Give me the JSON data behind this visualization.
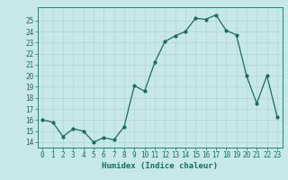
{
  "x": [
    0,
    1,
    2,
    3,
    4,
    5,
    6,
    7,
    8,
    9,
    10,
    11,
    12,
    13,
    14,
    15,
    16,
    17,
    18,
    19,
    20,
    21,
    22,
    23
  ],
  "y": [
    16,
    15.8,
    14.5,
    15.2,
    15.0,
    14.0,
    14.4,
    14.2,
    15.4,
    19.1,
    18.6,
    21.2,
    23.1,
    23.6,
    24.0,
    25.2,
    25.1,
    25.5,
    24.1,
    23.7,
    20.0,
    17.5,
    20.0,
    16.3
  ],
  "line_color": "#1a6b5a",
  "bg_color": "#c8e8e8",
  "grid_color": "#b0d4d4",
  "xlabel": "Humidex (Indice chaleur)",
  "ylim": [
    13.5,
    26.2
  ],
  "xlim": [
    -0.5,
    23.5
  ],
  "yticks": [
    14,
    15,
    16,
    17,
    18,
    19,
    20,
    21,
    22,
    23,
    24,
    25
  ],
  "xticks": [
    0,
    1,
    2,
    3,
    4,
    5,
    6,
    7,
    8,
    9,
    10,
    11,
    12,
    13,
    14,
    15,
    16,
    17,
    18,
    19,
    20,
    21,
    22,
    23
  ],
  "font_color": "#1a6b5a",
  "label_fontsize": 6.5,
  "tick_fontsize": 5.5
}
